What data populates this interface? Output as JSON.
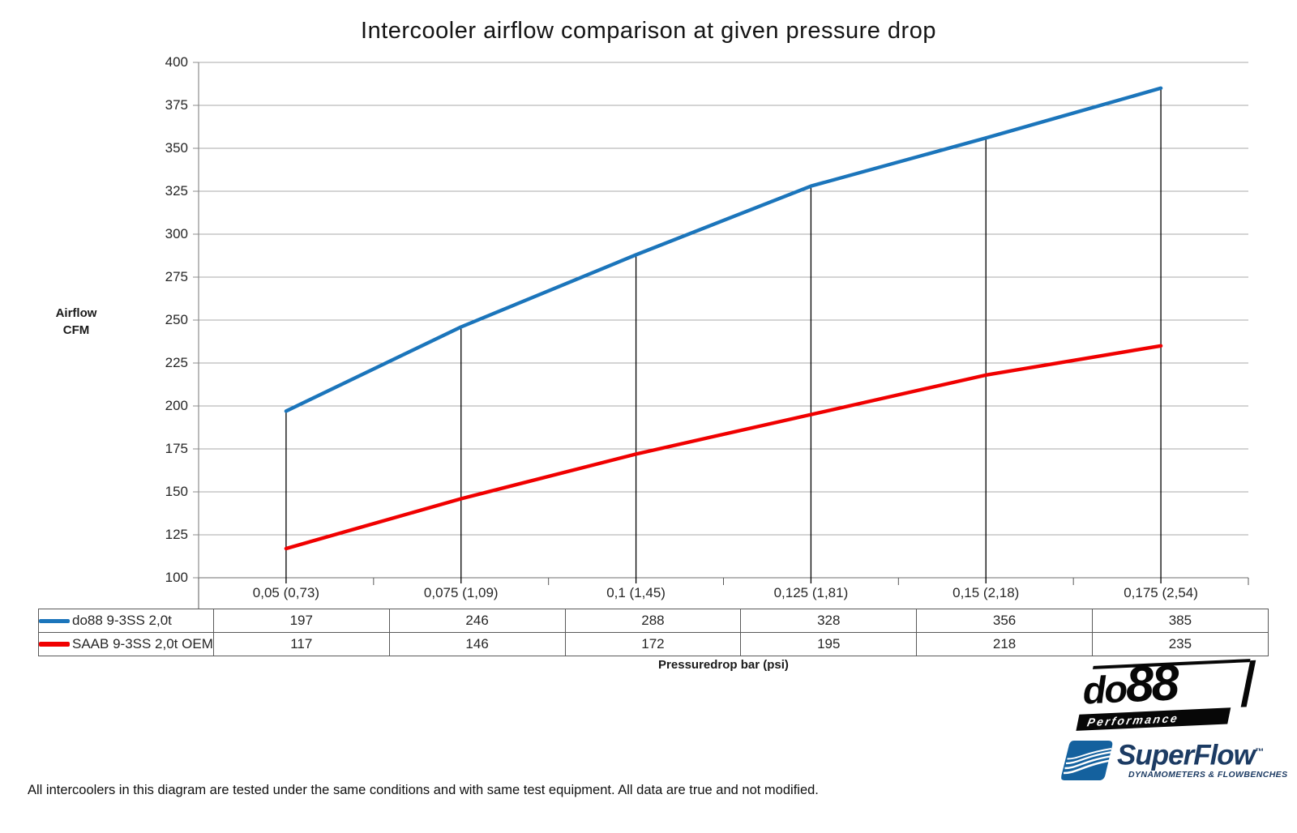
{
  "title": "Intercooler airflow comparison at given pressure drop",
  "chart_data": {
    "type": "line",
    "categories": [
      "0,05 (0,73)",
      "0,075 (1,09)",
      "0,1 (1,45)",
      "0,125 (1,81)",
      "0,15 (2,18)",
      "0,175 (2,54)"
    ],
    "series": [
      {
        "name": "do88 9-3SS 2,0t",
        "color": "#1B75BB",
        "values": [
          197,
          246,
          288,
          328,
          356,
          385
        ]
      },
      {
        "name": "SAAB 9-3SS 2,0t OEM",
        "color": "#F00000",
        "values": [
          117,
          146,
          172,
          195,
          218,
          235
        ]
      }
    ],
    "title": "Intercooler airflow comparison at given pressure drop",
    "xlabel": "Pressuredrop bar (psi)",
    "ylabel": "Airflow CFM",
    "ylim": [
      100,
      400
    ],
    "ytick_step": 25,
    "grid": true,
    "drop_lines": true,
    "legend_position": "data-table-left",
    "gridline_color": "#AAAAAA",
    "axis_color": "#8C8C8C",
    "table_border_color": "#595959"
  },
  "axis": {
    "ylabel_line1": "Airflow",
    "ylabel_line2": "CFM",
    "xlabel": "Pressuredrop bar (psi)"
  },
  "footer": {
    "disclaimer": "All intercoolers in this diagram are tested under the same conditions and with same test equipment. All data are true and not modified."
  },
  "logos": {
    "do88": {
      "part1": "do",
      "part2": "88",
      "subtext": "Performance"
    },
    "superflow": {
      "name": "SuperFlow",
      "tm": "™",
      "tagline": "DYNAMOMETERS & FLOWBENCHES"
    }
  }
}
